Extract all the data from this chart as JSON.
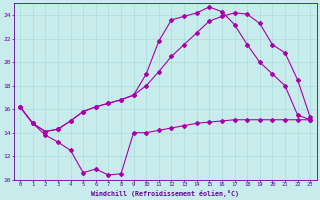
{
  "xlabel": "Windchill (Refroidissement éolien,°C)",
  "bg_color": "#c8ecec",
  "line_color": "#aa00aa",
  "grid_color": "#aadddd",
  "axis_color": "#660099",
  "xlim": [
    -0.5,
    23.5
  ],
  "ylim": [
    10,
    25
  ],
  "xticks": [
    0,
    1,
    2,
    3,
    4,
    5,
    6,
    7,
    8,
    9,
    10,
    11,
    12,
    13,
    14,
    15,
    16,
    17,
    18,
    19,
    20,
    21,
    22,
    23
  ],
  "yticks": [
    10,
    12,
    14,
    16,
    18,
    20,
    22,
    24
  ],
  "line1_x": [
    0,
    1,
    2,
    3,
    4,
    5,
    6,
    7,
    8,
    9,
    10,
    11,
    12,
    13,
    14,
    15,
    16,
    17,
    18,
    19,
    20,
    21,
    22,
    23
  ],
  "line1_y": [
    16.2,
    14.8,
    13.8,
    13.2,
    12.5,
    10.6,
    10.9,
    10.4,
    10.5,
    14.0,
    14.0,
    14.2,
    14.4,
    14.6,
    14.8,
    14.9,
    15.0,
    15.1,
    15.1,
    15.1,
    15.1,
    15.1,
    15.1,
    15.1
  ],
  "line2_x": [
    0,
    1,
    2,
    3,
    4,
    5,
    6,
    7,
    8,
    9,
    10,
    11,
    12,
    13,
    14,
    15,
    16,
    17,
    18,
    19,
    20,
    21,
    22,
    23
  ],
  "line2_y": [
    16.2,
    14.8,
    14.1,
    14.3,
    15.0,
    15.8,
    16.2,
    16.5,
    16.8,
    17.2,
    19.0,
    21.8,
    23.6,
    23.9,
    24.2,
    24.7,
    24.3,
    23.2,
    21.5,
    20.0,
    19.0,
    18.0,
    15.5,
    15.1
  ],
  "line3_x": [
    0,
    1,
    2,
    3,
    4,
    5,
    6,
    7,
    8,
    9,
    10,
    11,
    12,
    13,
    14,
    15,
    16,
    17,
    18,
    19,
    20,
    21,
    22,
    23
  ],
  "line3_y": [
    16.2,
    14.8,
    14.1,
    14.3,
    15.0,
    15.8,
    16.2,
    16.5,
    16.8,
    17.2,
    18.0,
    19.2,
    20.5,
    21.5,
    22.5,
    23.5,
    23.9,
    24.2,
    24.1,
    23.3,
    21.5,
    20.8,
    18.5,
    15.3
  ]
}
